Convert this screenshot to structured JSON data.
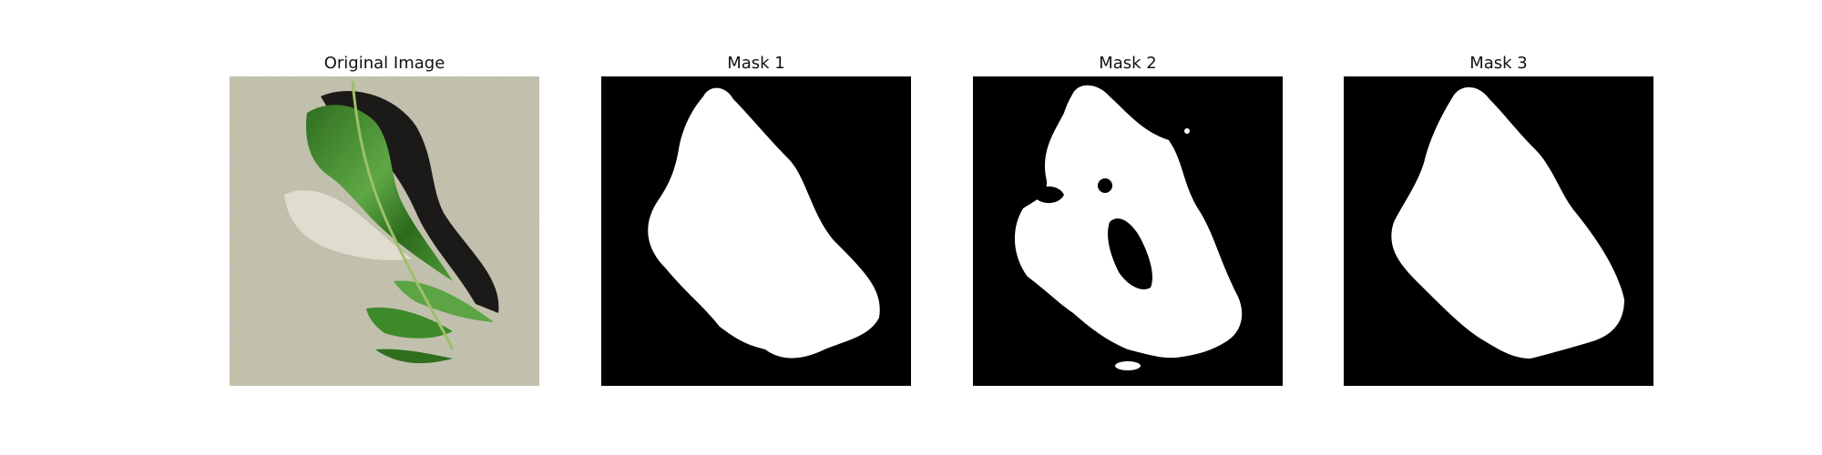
{
  "figure": {
    "panels": [
      {
        "title": "Original Image",
        "content": "photo of a green leaf with cut-out holes on a grainy gray-beige background"
      },
      {
        "title": "Mask 1",
        "content": "binary segmentation mask, white region on black"
      },
      {
        "title": "Mask 2",
        "content": "binary segmentation mask with interior hole and speckles, white on black"
      },
      {
        "title": "Mask 3",
        "content": "binary segmentation mask, white region on black"
      }
    ],
    "colors": {
      "mask_foreground": "#ffffff",
      "mask_background": "#000000",
      "photo_background": "#c9c8b4",
      "leaf_green": "#3f8a2a",
      "shadow": "#1c1a18"
    }
  }
}
